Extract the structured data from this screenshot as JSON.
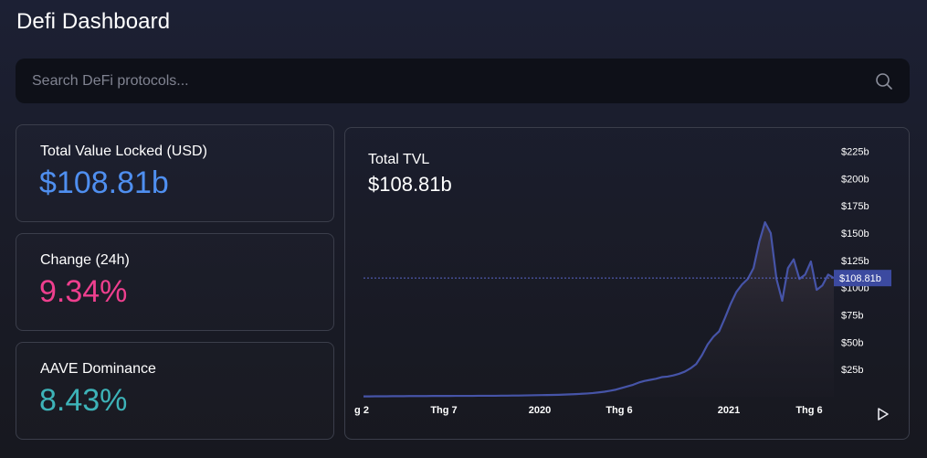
{
  "header": {
    "title": "Defi Dashboard"
  },
  "search": {
    "placeholder": "Search DeFi protocols...",
    "value": ""
  },
  "stats": [
    {
      "label": "Total Value Locked (USD)",
      "value": "$108.81b",
      "color": "#4f8ff0"
    },
    {
      "label": "Change (24h)",
      "value": "9.34%",
      "color": "#ee3f8e"
    },
    {
      "label": "AAVE Dominance",
      "value": "8.43%",
      "color": "#3db3b8"
    }
  ],
  "colors": {
    "line": "#4654a8",
    "price_tag_bg": "#3c4aa0",
    "reference_line": "#5a66c8"
  },
  "icons": {
    "search": "search-icon",
    "play": "play-icon"
  },
  "chart_data": {
    "type": "area",
    "title": "Total TVL",
    "current_value_label": "$108.81b",
    "current_value": 108.81,
    "price_tag_label": "$108.81b",
    "y_tick_labels": [
      "$225b",
      "$200b",
      "$175b",
      "$150b",
      "$125b",
      "$100b",
      "$75b",
      "$50b",
      "$25b"
    ],
    "y_ticks": [
      225,
      200,
      175,
      150,
      125,
      100,
      75,
      50,
      25
    ],
    "ylim": [
      0,
      233
    ],
    "x_tick_labels": [
      "g 2",
      "Thg 7",
      "2020",
      "Thg 6",
      "2021",
      "Thg 6"
    ],
    "series": [
      {
        "values": [
          0.3,
          0.3,
          0.4,
          0.4,
          0.4,
          0.5,
          0.5,
          0.5,
          0.6,
          0.6,
          0.6,
          0.6,
          0.7,
          0.7,
          0.7,
          0.7,
          0.8,
          0.8,
          0.8,
          0.8,
          0.9,
          0.9,
          0.9,
          0.9,
          1.0,
          1.0,
          1.1,
          1.1,
          1.2,
          1.3,
          1.4,
          1.5,
          1.6,
          1.7,
          1.8,
          2.0,
          2.2,
          2.4,
          2.7,
          3.0,
          3.4,
          4.0,
          4.6,
          5.5,
          6.5,
          8.0,
          9.5,
          11.0,
          13.0,
          14.5,
          15.5,
          16.5,
          18.0,
          18.5,
          19.5,
          21.0,
          23.0,
          26.0,
          30.0,
          38.0,
          48.0,
          55.0,
          60.0,
          72.0,
          85.0,
          96.0,
          103.0,
          108.0,
          118.0,
          142.0,
          160.0,
          150.0,
          108.0,
          88.0,
          118.0,
          126.0,
          108.0,
          112.0,
          124.0,
          98.0,
          102.0,
          112.0,
          108.81
        ]
      }
    ]
  }
}
